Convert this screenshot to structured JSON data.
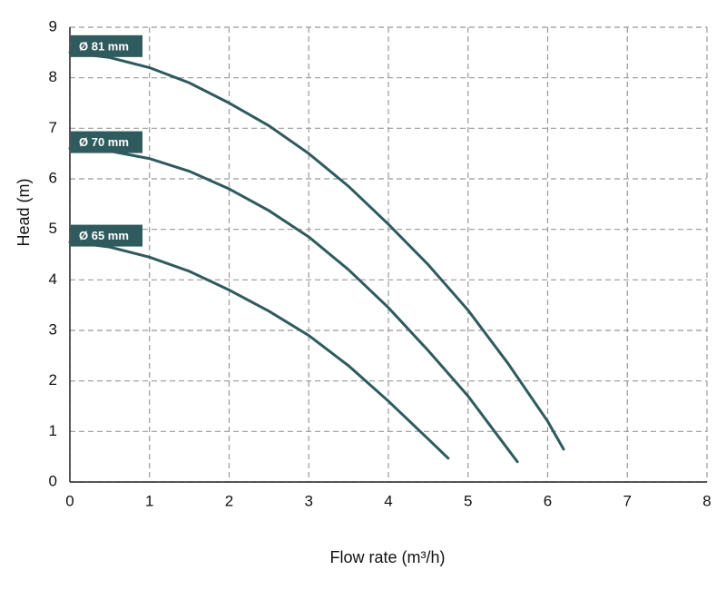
{
  "chart_data": {
    "type": "line",
    "x_label": "Flow rate (m³/h)",
    "y_label": "Head (m)",
    "xlim": [
      0,
      8
    ],
    "xticks": [
      0,
      1,
      2,
      3,
      4,
      5,
      6,
      7,
      8
    ],
    "ylim": [
      0,
      9
    ],
    "yticks": [
      0,
      1,
      2,
      3,
      4,
      5,
      6,
      7,
      8,
      9
    ],
    "grid": true,
    "series": [
      {
        "name": "Ø 81 mm",
        "color": "#2f5a5e",
        "x": [
          0,
          0.5,
          1,
          1.5,
          2,
          2.5,
          3,
          3.5,
          4,
          4.5,
          5,
          5.5,
          6,
          6.2
        ],
        "values": [
          8.5,
          8.4,
          8.2,
          7.9,
          7.5,
          7.05,
          6.5,
          5.85,
          5.1,
          4.3,
          3.4,
          2.35,
          1.2,
          0.65
        ]
      },
      {
        "name": "Ø 70 mm",
        "color": "#2f5a5e",
        "x": [
          0,
          0.5,
          1,
          1.5,
          2,
          2.5,
          3,
          3.5,
          4,
          4.5,
          5,
          5.5,
          5.62
        ],
        "values": [
          6.6,
          6.55,
          6.4,
          6.15,
          5.8,
          5.37,
          4.85,
          4.2,
          3.45,
          2.6,
          1.7,
          0.65,
          0.4
        ]
      },
      {
        "name": "Ø 65 mm",
        "color": "#2f5a5e",
        "x": [
          0,
          0.5,
          1,
          1.5,
          2,
          2.5,
          3,
          3.5,
          4,
          4.5,
          4.75
        ],
        "values": [
          4.75,
          4.65,
          4.45,
          4.17,
          3.8,
          3.38,
          2.9,
          2.3,
          1.6,
          0.85,
          0.47
        ]
      }
    ]
  }
}
